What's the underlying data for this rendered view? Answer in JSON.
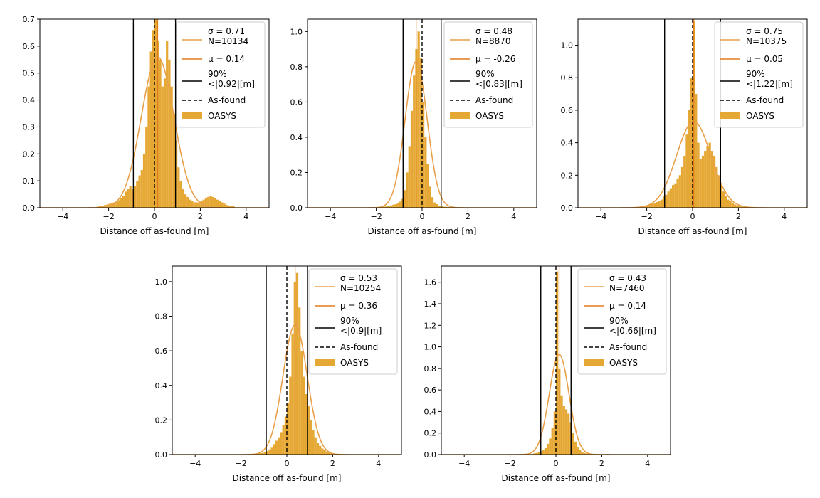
{
  "colors": {
    "hist": "#e6a835",
    "fit": "#e8a04a",
    "mu": "#e07b1c",
    "ninety": "#000000",
    "asfound": "#000000"
  },
  "chart_data": [
    {
      "type": "histogram",
      "xlabel": "Distance off as-found [m]",
      "xlim": [
        -5,
        5
      ],
      "ylim": [
        0,
        0.7
      ],
      "xticks": [
        -4,
        -2,
        0,
        2,
        4
      ],
      "yticks": [
        0.0,
        0.1,
        0.2,
        0.3,
        0.4,
        0.5,
        0.6,
        0.7
      ],
      "legend": {
        "placement": "top-right",
        "sigma_label": "σ = 0.71",
        "n_label": "N=10134",
        "mu_label": "μ = 0.14",
        "pct_label": "90%",
        "pct_value_label": "<|0.92|[m]",
        "asfound_label": "As-found",
        "hist_label": "OASYS"
      },
      "sigma": 0.71,
      "mu": 0.14,
      "ninety_bound": 0.92,
      "asfound": 0,
      "fit_peak": 0.56,
      "bin_width": 0.1,
      "bins": [
        [
          -2.5,
          0.005
        ],
        [
          -2.4,
          0.006
        ],
        [
          -2.3,
          0.008
        ],
        [
          -2.2,
          0.01
        ],
        [
          -2.1,
          0.012
        ],
        [
          -2.0,
          0.015
        ],
        [
          -1.9,
          0.018
        ],
        [
          -1.8,
          0.02
        ],
        [
          -1.7,
          0.022
        ],
        [
          -1.6,
          0.028
        ],
        [
          -1.5,
          0.035
        ],
        [
          -1.4,
          0.045
        ],
        [
          -1.3,
          0.06
        ],
        [
          -1.2,
          0.07
        ],
        [
          -1.1,
          0.08
        ],
        [
          -1.0,
          0.07
        ],
        [
          -0.9,
          0.08
        ],
        [
          -0.8,
          0.1
        ],
        [
          -0.7,
          0.12
        ],
        [
          -0.6,
          0.14
        ],
        [
          -0.5,
          0.2
        ],
        [
          -0.4,
          0.3
        ],
        [
          -0.3,
          0.45
        ],
        [
          -0.2,
          0.58
        ],
        [
          -0.1,
          0.66
        ],
        [
          0.0,
          0.7
        ],
        [
          0.1,
          0.62
        ],
        [
          0.2,
          0.55
        ],
        [
          0.3,
          0.45
        ],
        [
          0.4,
          0.48
        ],
        [
          0.5,
          0.62
        ],
        [
          0.6,
          0.55
        ],
        [
          0.7,
          0.45
        ],
        [
          0.8,
          0.35
        ],
        [
          0.9,
          0.25
        ],
        [
          1.0,
          0.15
        ],
        [
          1.1,
          0.1
        ],
        [
          1.2,
          0.07
        ],
        [
          1.3,
          0.05
        ],
        [
          1.4,
          0.04
        ],
        [
          1.5,
          0.03
        ],
        [
          1.6,
          0.025
        ],
        [
          1.7,
          0.02
        ],
        [
          1.8,
          0.02
        ],
        [
          1.9,
          0.02
        ],
        [
          2.0,
          0.025
        ],
        [
          2.1,
          0.03
        ],
        [
          2.2,
          0.035
        ],
        [
          2.3,
          0.04
        ],
        [
          2.4,
          0.045
        ],
        [
          2.5,
          0.04
        ],
        [
          2.6,
          0.035
        ],
        [
          2.7,
          0.03
        ],
        [
          2.8,
          0.025
        ],
        [
          2.9,
          0.02
        ],
        [
          3.0,
          0.015
        ],
        [
          3.1,
          0.01
        ],
        [
          3.2,
          0.008
        ],
        [
          3.3,
          0.006
        ],
        [
          3.4,
          0.005
        ]
      ]
    },
    {
      "type": "histogram",
      "xlabel": "Distance off as-found [m]",
      "xlim": [
        -5,
        5
      ],
      "ylim": [
        0,
        1.07
      ],
      "xticks": [
        -4,
        -2,
        0,
        2,
        4
      ],
      "yticks": [
        0.0,
        0.2,
        0.4,
        0.6,
        0.8,
        1.0
      ],
      "legend": {
        "placement": "top-right",
        "sigma_label": "σ = 0.48",
        "n_label": "N=8870",
        "mu_label": "μ = -0.26",
        "pct_label": "90%",
        "pct_value_label": "<|0.83|[m]",
        "asfound_label": "As-found",
        "hist_label": "OASYS"
      },
      "sigma": 0.48,
      "mu": -0.26,
      "ninety_bound": 0.83,
      "asfound": 0,
      "fit_peak": 0.83,
      "bin_width": 0.1,
      "bins": [
        [
          -2.0,
          0.003
        ],
        [
          -1.9,
          0.004
        ],
        [
          -1.8,
          0.005
        ],
        [
          -1.7,
          0.006
        ],
        [
          -1.6,
          0.008
        ],
        [
          -1.5,
          0.01
        ],
        [
          -1.4,
          0.013
        ],
        [
          -1.3,
          0.017
        ],
        [
          -1.2,
          0.02
        ],
        [
          -1.1,
          0.025
        ],
        [
          -1.0,
          0.035
        ],
        [
          -0.9,
          0.05
        ],
        [
          -0.8,
          0.1
        ],
        [
          -0.7,
          0.2
        ],
        [
          -0.6,
          0.35
        ],
        [
          -0.5,
          0.55
        ],
        [
          -0.4,
          0.75
        ],
        [
          -0.3,
          0.9
        ],
        [
          -0.2,
          1.0
        ],
        [
          -0.1,
          0.85
        ],
        [
          0.0,
          0.6
        ],
        [
          0.1,
          0.4
        ],
        [
          0.2,
          0.25
        ],
        [
          0.3,
          0.12
        ],
        [
          0.4,
          0.06
        ],
        [
          0.5,
          0.03
        ],
        [
          0.6,
          0.02
        ],
        [
          0.7,
          0.01
        ],
        [
          0.8,
          0.008
        ],
        [
          0.9,
          0.006
        ],
        [
          1.0,
          0.005
        ],
        [
          1.1,
          0.004
        ],
        [
          1.2,
          0.003
        ],
        [
          1.3,
          0.002
        ]
      ]
    },
    {
      "type": "histogram",
      "xlabel": "Distance off as-found [m]",
      "xlim": [
        -5,
        5
      ],
      "ylim": [
        0,
        1.16
      ],
      "xticks": [
        -4,
        -2,
        0,
        2,
        4
      ],
      "yticks": [
        0.0,
        0.2,
        0.4,
        0.6,
        0.8,
        1.0
      ],
      "legend": {
        "placement": "top-right",
        "sigma_label": "σ = 0.75",
        "n_label": "N=10375",
        "mu_label": "μ = 0.05",
        "pct_label": "90%",
        "pct_value_label": "<|1.22|[m]",
        "asfound_label": "As-found",
        "hist_label": "OASYS"
      },
      "sigma": 0.75,
      "mu": 0.05,
      "ninety_bound": 1.22,
      "asfound": 0,
      "fit_peak": 0.53,
      "bin_width": 0.1,
      "bins": [
        [
          -2.5,
          0.005
        ],
        [
          -2.4,
          0.006
        ],
        [
          -2.3,
          0.008
        ],
        [
          -2.2,
          0.01
        ],
        [
          -2.1,
          0.012
        ],
        [
          -2.0,
          0.015
        ],
        [
          -1.9,
          0.02
        ],
        [
          -1.8,
          0.025
        ],
        [
          -1.7,
          0.03
        ],
        [
          -1.6,
          0.035
        ],
        [
          -1.5,
          0.04
        ],
        [
          -1.4,
          0.05
        ],
        [
          -1.3,
          0.07
        ],
        [
          -1.2,
          0.08
        ],
        [
          -1.1,
          0.1
        ],
        [
          -1.0,
          0.12
        ],
        [
          -0.9,
          0.14
        ],
        [
          -0.8,
          0.15
        ],
        [
          -0.7,
          0.18
        ],
        [
          -0.6,
          0.2
        ],
        [
          -0.5,
          0.25
        ],
        [
          -0.4,
          0.32
        ],
        [
          -0.3,
          0.45
        ],
        [
          -0.2,
          0.6
        ],
        [
          -0.1,
          0.8
        ],
        [
          0.0,
          1.15
        ],
        [
          0.1,
          0.7
        ],
        [
          0.2,
          0.4
        ],
        [
          0.3,
          0.3
        ],
        [
          0.4,
          0.32
        ],
        [
          0.5,
          0.35
        ],
        [
          0.6,
          0.38
        ],
        [
          0.7,
          0.4
        ],
        [
          0.8,
          0.35
        ],
        [
          0.9,
          0.32
        ],
        [
          1.0,
          0.25
        ],
        [
          1.1,
          0.2
        ],
        [
          1.2,
          0.15
        ],
        [
          1.3,
          0.1
        ],
        [
          1.4,
          0.07
        ],
        [
          1.5,
          0.05
        ],
        [
          1.6,
          0.04
        ],
        [
          1.7,
          0.03
        ],
        [
          1.8,
          0.02
        ],
        [
          1.9,
          0.015
        ],
        [
          2.0,
          0.01
        ],
        [
          2.1,
          0.008
        ],
        [
          2.2,
          0.006
        ],
        [
          2.3,
          0.005
        ],
        [
          2.4,
          0.004
        ]
      ]
    },
    {
      "type": "histogram",
      "xlabel": "Distance off as-found [m]",
      "xlim": [
        -5,
        5
      ],
      "ylim": [
        0,
        1.09
      ],
      "xticks": [
        -4,
        -2,
        0,
        2,
        4
      ],
      "yticks": [
        0.0,
        0.2,
        0.4,
        0.6,
        0.8,
        1.0
      ],
      "legend": {
        "placement": "top-right",
        "sigma_label": "σ = 0.53",
        "n_label": "N=10254",
        "mu_label": "μ = 0.36",
        "pct_label": "90%",
        "pct_value_label": "<|0.9|[m]",
        "asfound_label": "As-found",
        "hist_label": "OASYS"
      },
      "sigma": 0.53,
      "mu": 0.36,
      "ninety_bound": 0.9,
      "asfound": 0,
      "fit_peak": 0.75,
      "bin_width": 0.1,
      "bins": [
        [
          -1.5,
          0.003
        ],
        [
          -1.4,
          0.004
        ],
        [
          -1.3,
          0.006
        ],
        [
          -1.2,
          0.008
        ],
        [
          -1.1,
          0.01
        ],
        [
          -1.0,
          0.015
        ],
        [
          -0.9,
          0.02
        ],
        [
          -0.8,
          0.03
        ],
        [
          -0.7,
          0.04
        ],
        [
          -0.6,
          0.06
        ],
        [
          -0.5,
          0.08
        ],
        [
          -0.4,
          0.1
        ],
        [
          -0.3,
          0.13
        ],
        [
          -0.2,
          0.17
        ],
        [
          -0.1,
          0.22
        ],
        [
          0.0,
          0.3
        ],
        [
          0.1,
          0.45
        ],
        [
          0.2,
          0.7
        ],
        [
          0.3,
          1.0
        ],
        [
          0.4,
          1.05
        ],
        [
          0.5,
          0.85
        ],
        [
          0.6,
          0.6
        ],
        [
          0.7,
          0.45
        ],
        [
          0.8,
          0.35
        ],
        [
          0.9,
          0.28
        ],
        [
          1.0,
          0.2
        ],
        [
          1.1,
          0.14
        ],
        [
          1.2,
          0.1
        ],
        [
          1.3,
          0.07
        ],
        [
          1.4,
          0.05
        ],
        [
          1.5,
          0.035
        ],
        [
          1.6,
          0.025
        ],
        [
          1.7,
          0.018
        ],
        [
          1.8,
          0.012
        ],
        [
          1.9,
          0.008
        ],
        [
          2.0,
          0.006
        ],
        [
          2.1,
          0.004
        ],
        [
          2.2,
          0.003
        ]
      ]
    },
    {
      "type": "histogram",
      "xlabel": "Distance off as-found [m]",
      "xlim": [
        -5,
        5
      ],
      "ylim": [
        0,
        1.75
      ],
      "xticks": [
        -4,
        -2,
        0,
        2,
        4
      ],
      "yticks": [
        0.0,
        0.2,
        0.4,
        0.6,
        0.8,
        1.0,
        1.2,
        1.4,
        1.6
      ],
      "legend": {
        "placement": "top-right",
        "sigma_label": "σ = 0.43",
        "n_label": "N=7460",
        "mu_label": "μ = 0.14",
        "pct_label": "90%",
        "pct_value_label": "<|0.66|[m]",
        "asfound_label": "As-found",
        "hist_label": "OASYS"
      },
      "sigma": 0.43,
      "mu": 0.14,
      "ninety_bound": 0.66,
      "asfound": 0,
      "fit_peak": 0.93,
      "bin_width": 0.1,
      "bins": [
        [
          -1.2,
          0.004
        ],
        [
          -1.1,
          0.006
        ],
        [
          -1.0,
          0.01
        ],
        [
          -0.9,
          0.015
        ],
        [
          -0.8,
          0.02
        ],
        [
          -0.7,
          0.03
        ],
        [
          -0.6,
          0.04
        ],
        [
          -0.5,
          0.06
        ],
        [
          -0.4,
          0.1
        ],
        [
          -0.3,
          0.15
        ],
        [
          -0.2,
          0.25
        ],
        [
          -0.1,
          0.4
        ],
        [
          0.0,
          1.7
        ],
        [
          0.1,
          0.8
        ],
        [
          0.2,
          0.55
        ],
        [
          0.3,
          0.45
        ],
        [
          0.4,
          0.42
        ],
        [
          0.5,
          0.38
        ],
        [
          0.6,
          0.3
        ],
        [
          0.7,
          0.2
        ],
        [
          0.8,
          0.12
        ],
        [
          0.9,
          0.07
        ],
        [
          1.0,
          0.04
        ],
        [
          1.1,
          0.025
        ],
        [
          1.2,
          0.015
        ],
        [
          1.3,
          0.01
        ],
        [
          1.4,
          0.008
        ],
        [
          1.5,
          0.006
        ],
        [
          1.6,
          0.005
        ],
        [
          1.7,
          0.004
        ],
        [
          1.8,
          0.004
        ],
        [
          1.9,
          0.003
        ],
        [
          2.0,
          0.003
        ],
        [
          2.1,
          0.004
        ],
        [
          2.2,
          0.006
        ],
        [
          2.3,
          0.004
        ]
      ]
    }
  ]
}
